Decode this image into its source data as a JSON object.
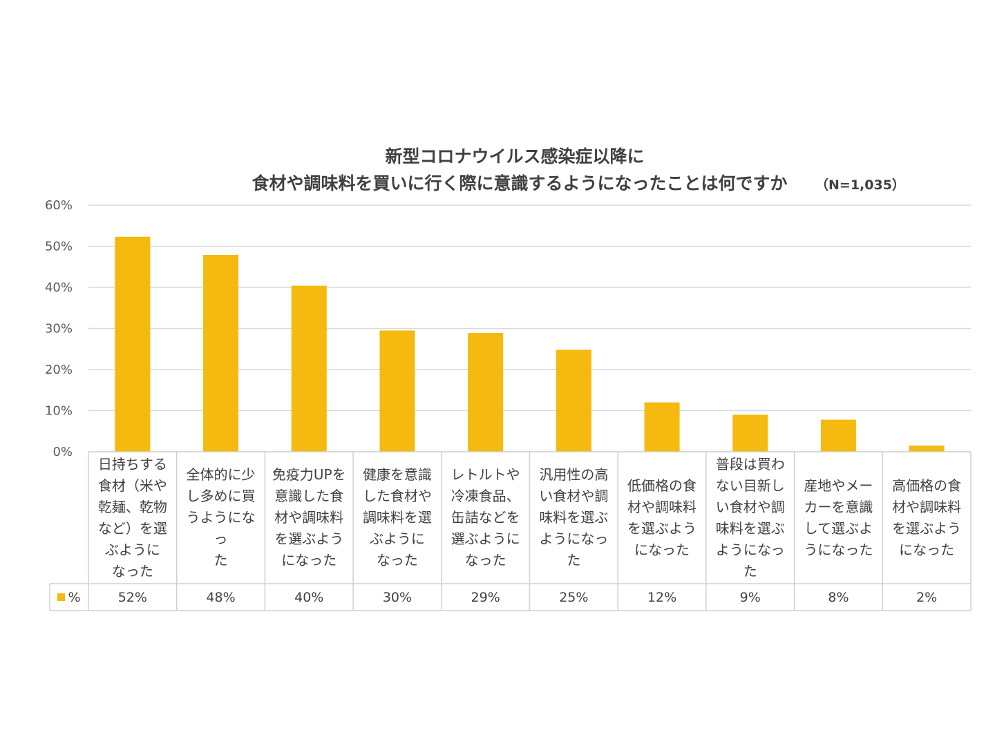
{
  "chart_data": {
    "type": "bar",
    "title": [
      "新型コロナウイルス感染症以降に",
      "食材や調味料を買いに行く際に意識するようになったことは何ですか"
    ],
    "note": "（N=1,035）",
    "categories": [
      "日持ちする食材（米や乾麺、乾物など）を選ぶようになった",
      "全体的に少し多めに買うようになった",
      "免疫力UPを意識した食材や調味料を選ぶようになった",
      "健康を意識した食材や調味料を選ぶようになった",
      "レトルトや冷凍食品、缶詰などを選ぶようになった",
      "汎用性の高い食材や調味料を選ぶようになった",
      "低価格の食材や調味料を選ぶようになった",
      "普段は買わない目新しい食材や調味料を選ぶようになった",
      "産地やメーカーを意識して選ぶようになった",
      "高価格の食材や調味料を選ぶようになった"
    ],
    "category_lines": [
      [
        "日持ちする",
        "食材（米や",
        "乾麺、乾物",
        "など）を選",
        "ぶように",
        "なった"
      ],
      [
        "全体的に少",
        "し多めに買",
        "うようになっ",
        "た"
      ],
      [
        "免疫力UPを",
        "意識した食",
        "材や調味料",
        "を選ぶよう",
        "になった"
      ],
      [
        "健康を意識",
        "した食材や",
        "調味料を選",
        "ぶように",
        "なった"
      ],
      [
        "レトルトや",
        "冷凍食品、",
        "缶詰などを",
        "選ぶように",
        "なった"
      ],
      [
        "汎用性の高",
        "い食材や調",
        "味料を選ぶ",
        "ようになっ",
        "た"
      ],
      [
        "低価格の食",
        "材や調味料",
        "を選ぶよう",
        "になった"
      ],
      [
        "普段は買わ",
        "ない目新し",
        "い食材や調",
        "味料を選ぶ",
        "ようになっ",
        "た"
      ],
      [
        "産地やメー",
        "カーを意識",
        "して選ぶよ",
        "うになった"
      ],
      [
        "高価格の食",
        "材や調味料",
        "を選ぶよう",
        "になった"
      ]
    ],
    "series": [
      {
        "name": "%",
        "values": [
          52.3,
          47.9,
          40.4,
          29.5,
          28.9,
          24.8,
          12.0,
          9.0,
          7.8,
          1.5
        ],
        "labels": [
          "52%",
          "48%",
          "40%",
          "30%",
          "29%",
          "25%",
          "12%",
          "9%",
          "8%",
          "2%"
        ],
        "color": "#F5B90F"
      }
    ],
    "yticks": [
      "0%",
      "10%",
      "20%",
      "30%",
      "40%",
      "50%",
      "60%"
    ],
    "ylim": [
      0,
      60
    ],
    "grid": true,
    "legend": "data-table"
  }
}
